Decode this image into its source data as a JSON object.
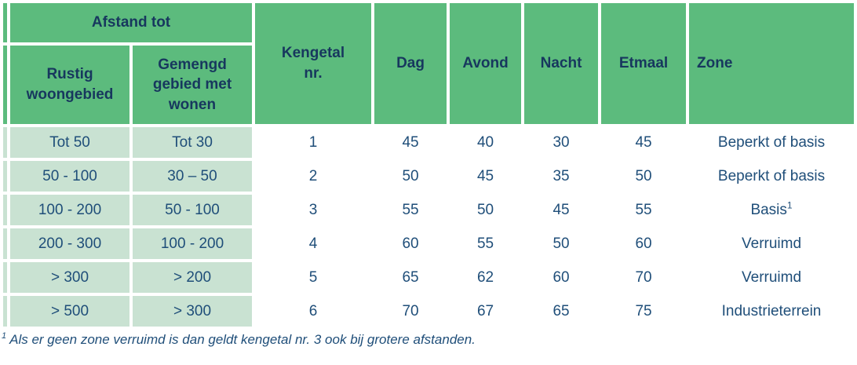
{
  "table": {
    "header": {
      "afstand_tot": "Afstand tot",
      "rustig": "Rustig woongebied",
      "gemengd": "Gemengd gebied met wonen",
      "kengetal": "Kengetal nr.",
      "dag": "Dag",
      "avond": "Avond",
      "nacht": "Nacht",
      "etmaal": "Etmaal",
      "zone": "Zone"
    },
    "rows": [
      {
        "rustig": "Tot 50",
        "gemengd": "Tot 30",
        "kengetal": "1",
        "dag": "45",
        "avond": "40",
        "nacht": "30",
        "etmaal": "45",
        "zone": "Beperkt of basis",
        "zone_sup": ""
      },
      {
        "rustig": "50 - 100",
        "gemengd": "30 – 50",
        "kengetal": "2",
        "dag": "50",
        "avond": "45",
        "nacht": "35",
        "etmaal": "50",
        "zone": "Beperkt of basis",
        "zone_sup": ""
      },
      {
        "rustig": "100 - 200",
        "gemengd": "50 - 100",
        "kengetal": "3",
        "dag": "55",
        "avond": "50",
        "nacht": "45",
        "etmaal": "55",
        "zone": "Basis",
        "zone_sup": "1"
      },
      {
        "rustig": "200 - 300",
        "gemengd": "100 - 200",
        "kengetal": "4",
        "dag": "60",
        "avond": "55",
        "nacht": "50",
        "etmaal": "60",
        "zone": "Verruimd",
        "zone_sup": ""
      },
      {
        "rustig": "> 300",
        "gemengd": "> 200",
        "kengetal": "5",
        "dag": "65",
        "avond": "62",
        "nacht": "60",
        "etmaal": "70",
        "zone": "Verruimd",
        "zone_sup": ""
      },
      {
        "rustig": "> 500",
        "gemengd": "> 300",
        "kengetal": "6",
        "dag": "70",
        "avond": "67",
        "nacht": "65",
        "etmaal": "75",
        "zone": "Industrieterrein",
        "zone_sup": ""
      }
    ],
    "footnote": {
      "marker": "1",
      "text": "Als er geen zone verruimd is dan geldt kengetal nr. 3 ook bij grotere afstanden."
    }
  },
  "colors": {
    "header_green": "#5CBB7D",
    "row_light_green": "#C9E2D2",
    "header_text_navy": "#17375E",
    "data_text_blue": "#1F4E79",
    "background": "#FFFFFF"
  }
}
